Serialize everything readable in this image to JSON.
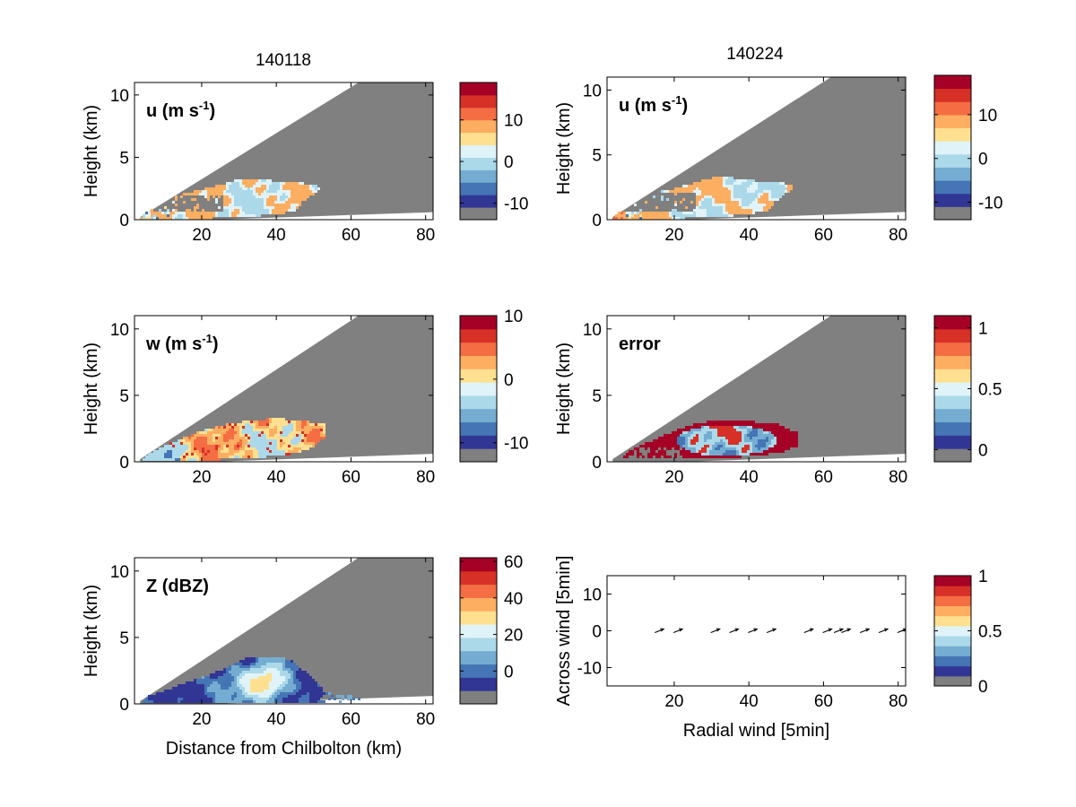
{
  "figure": {
    "col_titles": [
      "140118",
      "140224"
    ]
  },
  "colormap": [
    "#313695",
    "#4575b4",
    "#74add1",
    "#abd9e9",
    "#e0f3f8",
    "#fee090",
    "#fdae61",
    "#f46d43",
    "#d73027",
    "#a50026"
  ],
  "colors": {
    "masked": "#808080",
    "background": "#ffffff"
  },
  "chart_data": [
    {
      "id": "u-140118",
      "type": "heatmap",
      "panel_label": "u (m s⁻¹)",
      "label_base": "u (m s",
      "label_sup": "-1",
      "label_close": ")",
      "ylabel": "Height (km)",
      "xlabel": "",
      "xticks": [
        20,
        40,
        60,
        80
      ],
      "yticks": [
        0,
        5,
        10
      ],
      "xlim": [
        2,
        82
      ],
      "ylim": [
        0,
        11
      ],
      "field": "u",
      "colorbar": {
        "ticks": [
          10,
          0,
          -10
        ],
        "tick_labels": [
          "10",
          "0",
          "-10"
        ],
        "range": [
          -14,
          19
        ],
        "has_gray_bottom": true
      }
    },
    {
      "id": "u-140224",
      "type": "heatmap",
      "panel_label": "u (m s⁻¹)",
      "label_base": "u (m s",
      "label_sup": "-1",
      "label_close": ")",
      "ylabel": "Height (km)",
      "xlabel": "",
      "xticks": [
        20,
        40,
        60,
        80
      ],
      "yticks": [
        0,
        5,
        10
      ],
      "xlim": [
        2,
        82
      ],
      "ylim": [
        0,
        11
      ],
      "field": "u",
      "colorbar": {
        "ticks": [
          10,
          0,
          -10
        ],
        "tick_labels": [
          "10",
          "0",
          "-10"
        ],
        "range": [
          -14,
          19
        ],
        "has_gray_bottom": true
      }
    },
    {
      "id": "w-140118",
      "type": "heatmap",
      "panel_label": "w (m s⁻¹)",
      "label_base": "w (m s",
      "label_sup": "-1",
      "label_close": ")",
      "ylabel": "Height (km)",
      "xlabel": "",
      "xticks": [
        20,
        40,
        60,
        80
      ],
      "yticks": [
        0,
        5,
        10
      ],
      "xlim": [
        2,
        82
      ],
      "ylim": [
        0,
        11
      ],
      "field": "w",
      "colorbar": {
        "ticks": [
          10,
          0,
          -10
        ],
        "tick_labels": [
          "10",
          "0",
          "-10"
        ],
        "range": [
          -13,
          10
        ],
        "has_gray_bottom": true
      }
    },
    {
      "id": "error-140224",
      "type": "heatmap",
      "panel_label": "error",
      "label_base": "error",
      "label_sup": "",
      "label_close": "",
      "ylabel": "Height (km)",
      "xlabel": "",
      "xticks": [
        20,
        40,
        60,
        80
      ],
      "yticks": [
        0,
        5,
        10
      ],
      "xlim": [
        2,
        82
      ],
      "ylim": [
        0,
        11
      ],
      "field": "error",
      "colorbar": {
        "ticks": [
          1,
          0.5,
          0
        ],
        "tick_labels": [
          "1",
          "0.5",
          "0"
        ],
        "range": [
          -0.1,
          1.1
        ],
        "has_gray_bottom": true
      }
    },
    {
      "id": "Z-140118",
      "type": "heatmap",
      "panel_label": "Z (dBZ)",
      "label_base": "Z (dBZ)",
      "label_sup": "",
      "label_close": "",
      "ylabel": "Height (km)",
      "xlabel": "Distance from Chilbolton (km)",
      "xticks": [
        20,
        40,
        60,
        80
      ],
      "yticks": [
        0,
        5,
        10
      ],
      "xlim": [
        2,
        82
      ],
      "ylim": [
        0,
        11
      ],
      "field": "Z",
      "colorbar": {
        "ticks": [
          60,
          40,
          20,
          0
        ],
        "tick_labels": [
          "60",
          "40",
          "20",
          "0"
        ],
        "range": [
          -18,
          62
        ],
        "has_gray_bottom": true
      }
    },
    {
      "id": "quiver-140224",
      "type": "scatter",
      "panel_label": "",
      "label_base": "",
      "label_sup": "",
      "label_close": "",
      "ylabel": "Across wind [5min]",
      "xlabel": "Radial wind [5min]",
      "xticks": [
        20,
        40,
        60,
        80
      ],
      "yticks": [
        10,
        0,
        -10
      ],
      "xlim": [
        2,
        82
      ],
      "ylim": [
        -15,
        15
      ],
      "field": "quiver",
      "arrows_x": [
        16,
        21,
        31,
        36,
        41,
        46,
        56,
        61,
        64,
        66,
        71,
        76,
        81
      ],
      "arrows_y": [
        0,
        0,
        0,
        0,
        0,
        0,
        0,
        0,
        0,
        0,
        0,
        0,
        0
      ],
      "colorbar": {
        "ticks": [
          1,
          0.5,
          0
        ],
        "tick_labels": [
          "1",
          "0.5",
          "0"
        ],
        "range": [
          0,
          1
        ],
        "has_gray_bottom": true
      }
    }
  ]
}
